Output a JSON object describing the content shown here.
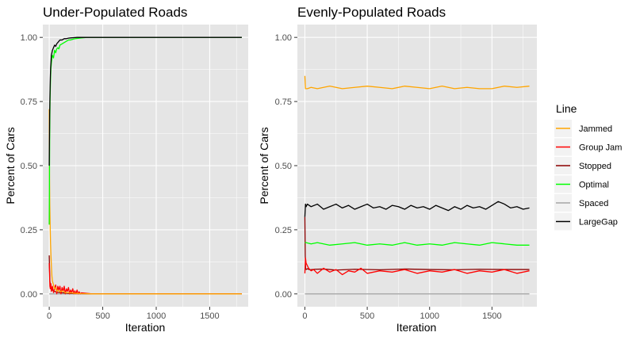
{
  "chart_data": [
    {
      "type": "line",
      "title": "Under-Populated Roads",
      "xlabel": "Iteration",
      "ylabel": "Percent of Cars",
      "xlim": [
        -60,
        1860
      ],
      "ylim": [
        -0.05,
        1.05
      ],
      "x_ticks": [
        0,
        500,
        1000,
        1500
      ],
      "x_tick_labels": [
        "0",
        "500",
        "1000",
        "1500"
      ],
      "y_ticks": [
        0,
        0.25,
        0.5,
        0.75,
        1.0
      ],
      "y_tick_labels": [
        "0.00",
        "0.25",
        "0.50",
        "0.75",
        "1.00"
      ],
      "series": [
        {
          "name": "Spaced",
          "color": "#a6a6a6",
          "x": [
            0,
            1800
          ],
          "y": [
            0,
            0
          ]
        },
        {
          "name": "Stopped",
          "color": "#8b0000",
          "x": [
            0,
            3,
            6,
            12,
            20,
            30,
            45,
            60,
            80,
            100,
            130,
            160,
            200,
            300,
            400,
            1800
          ],
          "y": [
            0.15,
            0.1,
            0.05,
            0.03,
            0.02,
            0.015,
            0.01,
            0.008,
            0.006,
            0.005,
            0.004,
            0.003,
            0.002,
            0.001,
            0,
            0
          ]
        },
        {
          "name": "Group Jam",
          "color": "#ff0000",
          "x": [
            0,
            3,
            6,
            10,
            15,
            20,
            30,
            40,
            50,
            60,
            70,
            80,
            90,
            100,
            110,
            120,
            130,
            140,
            150,
            160,
            170,
            180,
            190,
            200,
            210,
            220,
            230,
            240,
            250,
            260,
            270,
            280,
            290,
            300,
            350,
            400,
            1800
          ],
          "y": [
            0.12,
            0.08,
            0.03,
            0.02,
            0.04,
            0.01,
            0.03,
            0.005,
            0.02,
            0.035,
            0.0,
            0.03,
            0.015,
            0.03,
            0.0,
            0.025,
            0.01,
            0.03,
            0.0,
            0.02,
            0.01,
            0.025,
            0.0,
            0.015,
            0.005,
            0.02,
            0.0,
            0.012,
            0.0,
            0.015,
            0.0,
            0.008,
            0.0,
            0.004,
            0.002,
            0,
            0
          ]
        },
        {
          "name": "Jammed",
          "color": "#ffa500",
          "x": [
            0,
            2,
            5,
            8,
            12,
            16,
            20,
            25,
            30,
            40,
            50,
            60,
            70,
            80,
            100,
            120,
            150,
            200,
            250,
            300,
            400,
            1800
          ],
          "y": [
            0.72,
            0.5,
            0.35,
            0.28,
            0.2,
            0.15,
            0.11,
            0.07,
            0.05,
            0.035,
            0.02,
            0.025,
            0.01,
            0.015,
            0.008,
            0.012,
            0.005,
            0.004,
            0.002,
            0.001,
            0,
            0
          ]
        },
        {
          "name": "Optimal",
          "color": "#00ff00",
          "x": [
            0,
            2,
            4,
            6,
            8,
            10,
            13,
            16,
            20,
            25,
            30,
            40,
            50,
            60,
            70,
            80,
            90,
            100,
            120,
            140,
            160,
            180,
            200,
            230,
            260,
            300,
            350,
            400,
            1800
          ],
          "y": [
            0.27,
            0.45,
            0.6,
            0.7,
            0.76,
            0.8,
            0.85,
            0.88,
            0.9,
            0.92,
            0.93,
            0.92,
            0.95,
            0.94,
            0.955,
            0.96,
            0.955,
            0.97,
            0.975,
            0.98,
            0.985,
            0.99,
            0.99,
            0.994,
            0.996,
            0.998,
            1.0,
            1.0,
            1.0
          ]
        },
        {
          "name": "LargeGap",
          "color": "#000000",
          "x": [
            0,
            2,
            4,
            6,
            8,
            10,
            13,
            16,
            20,
            25,
            30,
            40,
            50,
            60,
            70,
            80,
            90,
            100,
            120,
            140,
            160,
            180,
            200,
            230,
            260,
            300,
            350,
            400,
            1800
          ],
          "y": [
            0.5,
            0.6,
            0.7,
            0.76,
            0.8,
            0.84,
            0.88,
            0.9,
            0.93,
            0.94,
            0.95,
            0.96,
            0.97,
            0.965,
            0.975,
            0.98,
            0.985,
            0.99,
            0.99,
            0.995,
            0.995,
            0.997,
            0.998,
            0.999,
            1.0,
            1.0,
            1.0,
            1.0,
            1.0
          ]
        }
      ]
    },
    {
      "type": "line",
      "title": "Evenly-Populated Roads",
      "xlabel": "Iteration",
      "ylabel": "Percent of Cars",
      "xlim": [
        -60,
        1860
      ],
      "ylim": [
        -0.05,
        1.05
      ],
      "x_ticks": [
        0,
        500,
        1000,
        1500
      ],
      "x_tick_labels": [
        "0",
        "500",
        "1000",
        "1500"
      ],
      "y_ticks": [
        0,
        0.25,
        0.5,
        0.75,
        1.0
      ],
      "y_tick_labels": [
        "0.00",
        "0.25",
        "0.50",
        "0.75",
        "1.00"
      ],
      "series": [
        {
          "name": "Spaced",
          "color": "#a6a6a6",
          "x": [
            0,
            1800
          ],
          "y": [
            0,
            0
          ]
        },
        {
          "name": "Stopped",
          "color": "#8b0000",
          "x": [
            0,
            3,
            6,
            10,
            20,
            40,
            80,
            150,
            250,
            400,
            600,
            800,
            1000,
            1200,
            1400,
            1600,
            1800
          ],
          "y": [
            0.3,
            0.15,
            0.1,
            0.095,
            0.098,
            0.094,
            0.096,
            0.097,
            0.093,
            0.096,
            0.094,
            0.097,
            0.095,
            0.094,
            0.096,
            0.095,
            0.095
          ]
        },
        {
          "name": "Group Jam",
          "color": "#ff0000",
          "x": [
            0,
            5,
            10,
            20,
            30,
            50,
            70,
            100,
            150,
            200,
            250,
            300,
            350,
            400,
            450,
            500,
            600,
            700,
            800,
            900,
            1000,
            1100,
            1200,
            1300,
            1400,
            1500,
            1600,
            1700,
            1800
          ],
          "y": [
            0.08,
            0.14,
            0.12,
            0.11,
            0.1,
            0.09,
            0.095,
            0.08,
            0.1,
            0.085,
            0.095,
            0.075,
            0.09,
            0.085,
            0.1,
            0.08,
            0.09,
            0.085,
            0.095,
            0.08,
            0.09,
            0.085,
            0.095,
            0.08,
            0.09,
            0.085,
            0.095,
            0.08,
            0.09
          ]
        },
        {
          "name": "Optimal",
          "color": "#00ff00",
          "x": [
            0,
            5,
            10,
            50,
            100,
            200,
            300,
            400,
            500,
            600,
            700,
            800,
            900,
            1000,
            1100,
            1200,
            1300,
            1400,
            1500,
            1600,
            1700,
            1800
          ],
          "y": [
            0.2,
            0.2,
            0.2,
            0.195,
            0.2,
            0.19,
            0.195,
            0.2,
            0.19,
            0.195,
            0.19,
            0.2,
            0.19,
            0.195,
            0.19,
            0.2,
            0.195,
            0.19,
            0.2,
            0.195,
            0.19,
            0.19
          ]
        },
        {
          "name": "Jammed",
          "color": "#ffa500",
          "x": [
            0,
            5,
            10,
            20,
            50,
            100,
            200,
            300,
            400,
            500,
            600,
            700,
            800,
            900,
            1000,
            1100,
            1200,
            1300,
            1400,
            1500,
            1600,
            1700,
            1800
          ],
          "y": [
            0.85,
            0.8,
            0.8,
            0.8,
            0.805,
            0.8,
            0.81,
            0.8,
            0.805,
            0.81,
            0.805,
            0.8,
            0.81,
            0.805,
            0.8,
            0.81,
            0.8,
            0.805,
            0.8,
            0.8,
            0.81,
            0.805,
            0.81
          ]
        },
        {
          "name": "LargeGap",
          "color": "#000000",
          "x": [
            0,
            5,
            10,
            20,
            50,
            100,
            150,
            200,
            250,
            300,
            350,
            400,
            450,
            500,
            550,
            600,
            650,
            700,
            750,
            800,
            850,
            900,
            950,
            1000,
            1050,
            1100,
            1150,
            1200,
            1250,
            1300,
            1350,
            1400,
            1450,
            1500,
            1550,
            1600,
            1650,
            1700,
            1750,
            1800
          ],
          "y": [
            0.3,
            0.35,
            0.34,
            0.35,
            0.34,
            0.35,
            0.33,
            0.34,
            0.35,
            0.335,
            0.345,
            0.33,
            0.34,
            0.35,
            0.335,
            0.34,
            0.33,
            0.345,
            0.34,
            0.33,
            0.345,
            0.335,
            0.34,
            0.33,
            0.345,
            0.335,
            0.325,
            0.34,
            0.33,
            0.345,
            0.335,
            0.34,
            0.33,
            0.345,
            0.36,
            0.35,
            0.335,
            0.34,
            0.33,
            0.335
          ]
        }
      ]
    }
  ],
  "legend": {
    "title": "Line",
    "position": "right",
    "items": [
      {
        "label": "Jammed",
        "color": "#ffa500"
      },
      {
        "label": "Group Jam",
        "color": "#ff0000"
      },
      {
        "label": "Stopped",
        "color": "#8b0000"
      },
      {
        "label": "Optimal",
        "color": "#00ff00"
      },
      {
        "label": "Spaced",
        "color": "#a6a6a6"
      },
      {
        "label": "LargeGap",
        "color": "#000000"
      }
    ]
  },
  "theme": {
    "panel_background": "#e5e5e5",
    "grid_color": "#ffffff",
    "legend_key_background": "#f2f2f2"
  }
}
